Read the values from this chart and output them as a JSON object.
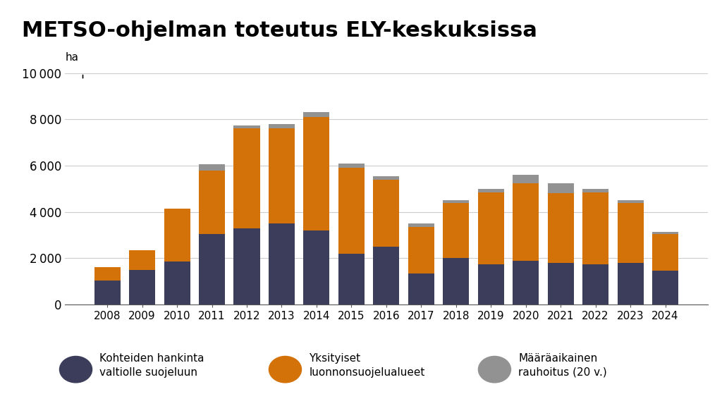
{
  "title": "METSO-ohjelman toteutus ELY-keskuksissa",
  "years": [
    2008,
    2009,
    2010,
    2011,
    2012,
    2013,
    2014,
    2015,
    2016,
    2017,
    2018,
    2019,
    2020,
    2021,
    2022,
    2023,
    2024
  ],
  "state_acquisition": [
    1050,
    1500,
    1850,
    3050,
    3300,
    3500,
    3200,
    2200,
    2500,
    1350,
    2000,
    1750,
    1900,
    1800,
    1750,
    1800,
    1450
  ],
  "private_reserve": [
    550,
    850,
    2300,
    2750,
    4300,
    4100,
    4900,
    3700,
    2900,
    2000,
    2400,
    3100,
    3350,
    3000,
    3100,
    2600,
    1600
  ],
  "temp_protection": [
    0,
    0,
    0,
    250,
    150,
    200,
    200,
    200,
    150,
    150,
    100,
    150,
    350,
    450,
    150,
    100,
    100
  ],
  "color_state": "#3c3d5b",
  "color_private": "#d4720a",
  "color_temp": "#929292",
  "ylim": [
    0,
    10000
  ],
  "yticks": [
    0,
    2000,
    4000,
    6000,
    8000,
    10000
  ],
  "background_color": "#ffffff",
  "title_fontsize": 22,
  "legend_label_state": "Kohteiden hankinta\nvaltiolle suojeluun",
  "legend_label_private": "Yksityiset\nluonnonsuojelualueet",
  "legend_label_temp": "Määräaikainen\nrauhoitus (20 v.)"
}
